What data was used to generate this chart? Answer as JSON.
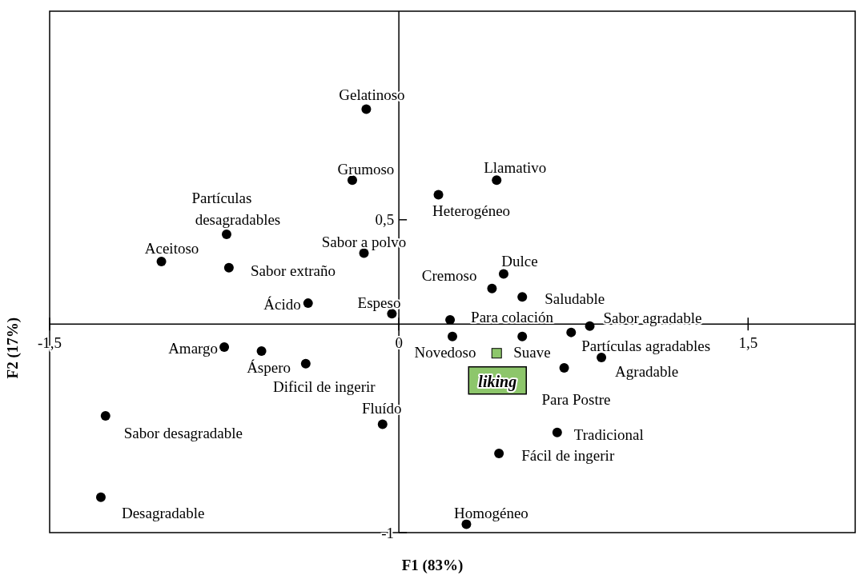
{
  "chart_data": {
    "type": "scatter",
    "xlabel": "F1 (83%)",
    "ylabel": "F2 (17%)",
    "xlim": [
      -1.5,
      1.96
    ],
    "ylim": [
      -1,
      1.5
    ],
    "xticks": [
      {
        "value": -1.5,
        "label": "-1,5"
      },
      {
        "value": 0,
        "label": "0"
      },
      {
        "value": 1.5,
        "label": "1,5"
      }
    ],
    "yticks": [
      {
        "value": -1,
        "label": "-1"
      },
      {
        "value": 0.5,
        "label": "0,5"
      }
    ],
    "series": [
      {
        "color": "#000000",
        "marker": "circle",
        "x": [
          -0.14,
          -0.2,
          0.42,
          0.17,
          -0.74,
          -1.02,
          -0.15,
          -0.73,
          0.45,
          0.4,
          0.53,
          -0.39,
          -0.03,
          0.22,
          0.82,
          0.74,
          0.23,
          0.53,
          -0.75,
          -0.59,
          0.87,
          -0.4,
          0.71,
          -1.26,
          -0.07,
          0.68,
          0.43,
          -1.28,
          0.29
        ],
        "values": [
          1.03,
          0.69,
          0.69,
          0.62,
          0.43,
          0.3,
          0.34,
          0.27,
          0.24,
          0.17,
          0.13,
          0.1,
          0.05,
          0.02,
          -0.01,
          -0.04,
          -0.06,
          -0.06,
          -0.11,
          -0.13,
          -0.16,
          -0.19,
          -0.21,
          -0.44,
          -0.48,
          -0.52,
          -0.62,
          -0.83,
          -0.96
        ]
      },
      {
        "name": "liking",
        "color": "#8dc66b",
        "marker": "square",
        "x": [
          0.42
        ],
        "values": [
          -0.14
        ]
      }
    ],
    "annotations": [
      {
        "text": "Gelatinoso",
        "x": -0.14,
        "y": 1.03
      },
      {
        "text": "Grumoso",
        "x": -0.2,
        "y": 0.69
      },
      {
        "text": "Llamativo",
        "x": 0.42,
        "y": 0.69
      },
      {
        "text": "Heterogéneo",
        "x": 0.17,
        "y": 0.62
      },
      {
        "text": "Partículas desagradables",
        "x": -0.74,
        "y": 0.43
      },
      {
        "text": "Aceitoso",
        "x": -1.02,
        "y": 0.3
      },
      {
        "text": "Sabor a polvo",
        "x": -0.15,
        "y": 0.34
      },
      {
        "text": "Sabor extraño",
        "x": -0.73,
        "y": 0.27
      },
      {
        "text": "Dulce",
        "x": 0.45,
        "y": 0.24
      },
      {
        "text": "Cremoso",
        "x": 0.4,
        "y": 0.17
      },
      {
        "text": "Saludable",
        "x": 0.53,
        "y": 0.13
      },
      {
        "text": "Ácido",
        "x": -0.39,
        "y": 0.1
      },
      {
        "text": "Espeso",
        "x": -0.03,
        "y": 0.05
      },
      {
        "text": "Para colación",
        "x": 0.22,
        "y": 0.02
      },
      {
        "text": "Sabor agradable",
        "x": 0.82,
        "y": -0.01
      },
      {
        "text": "Partículas agradables",
        "x": 0.74,
        "y": -0.04
      },
      {
        "text": "Novedoso",
        "x": 0.23,
        "y": -0.06
      },
      {
        "text": "Suave",
        "x": 0.53,
        "y": -0.06
      },
      {
        "text": "Amargo",
        "x": -0.75,
        "y": -0.11
      },
      {
        "text": "Áspero",
        "x": -0.59,
        "y": -0.13
      },
      {
        "text": "Agradable",
        "x": 0.87,
        "y": -0.16
      },
      {
        "text": "Dificil de ingerir",
        "x": -0.4,
        "y": -0.19
      },
      {
        "text": "Para Postre",
        "x": 0.71,
        "y": -0.21
      },
      {
        "text": "Sabor desagradable",
        "x": -1.26,
        "y": -0.44
      },
      {
        "text": "Fluído",
        "x": -0.07,
        "y": -0.48
      },
      {
        "text": "Tradicional",
        "x": 0.68,
        "y": -0.52
      },
      {
        "text": "Fácil de ingerir",
        "x": 0.43,
        "y": -0.62
      },
      {
        "text": "Desagradable",
        "x": -1.28,
        "y": -0.83
      },
      {
        "text": "Homogéneo",
        "x": 0.29,
        "y": -0.96
      }
    ]
  }
}
